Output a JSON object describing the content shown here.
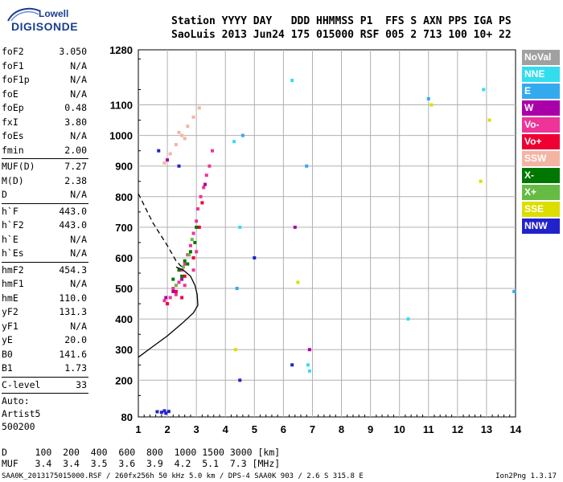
{
  "logo": {
    "line1": "Lowell",
    "line2": "DIGISONDE"
  },
  "header": {
    "line1": "Station YYYY DAY   DDD HHMMSS P1  FFS S AXN PPS IGA PS",
    "line2": "SaoLuis 2013 Jun24 175 015000 RSF 005 2 713 100 10+ 22"
  },
  "params": [
    {
      "label": "foF2",
      "value": "3.050"
    },
    {
      "label": "foF1",
      "value": "N/A"
    },
    {
      "label": "foF1p",
      "value": "N/A"
    },
    {
      "label": "foE",
      "value": "N/A"
    },
    {
      "label": "foEp",
      "value": "0.48"
    },
    {
      "label": "fxI",
      "value": "3.80"
    },
    {
      "label": "foEs",
      "value": "N/A"
    },
    {
      "label": "fmin",
      "value": "2.00"
    },
    {
      "sep": true
    },
    {
      "label": "MUF(D)",
      "value": "7.27"
    },
    {
      "label": "M(D)",
      "value": "2.38"
    },
    {
      "label": "D",
      "value": "N/A"
    },
    {
      "sep": true
    },
    {
      "label": "h`F",
      "value": "443.0"
    },
    {
      "label": "h`F2",
      "value": "443.0"
    },
    {
      "label": "h`E",
      "value": "N/A"
    },
    {
      "label": "h`Es",
      "value": "N/A"
    },
    {
      "sep": true
    },
    {
      "label": "hmF2",
      "value": "454.3"
    },
    {
      "label": "hmF1",
      "value": "N/A"
    },
    {
      "label": "hmE",
      "value": "110.0"
    },
    {
      "label": "yF2",
      "value": "131.3"
    },
    {
      "label": "yF1",
      "value": "N/A"
    },
    {
      "label": "yE",
      "value": "20.0"
    },
    {
      "label": "B0",
      "value": "141.6"
    },
    {
      "label": "B1",
      "value": "1.73"
    },
    {
      "sep": true
    },
    {
      "label": "C-level",
      "value": "33"
    },
    {
      "sep": true
    }
  ],
  "auto": {
    "line1": "Auto:",
    "line2": "Artist5",
    "line3": "500200"
  },
  "legend": [
    {
      "label": "NoVal",
      "color": "#a0a0a0"
    },
    {
      "label": "NNE",
      "color": "#33ddee"
    },
    {
      "label": "E",
      "color": "#33aaee"
    },
    {
      "label": "W",
      "color": "#aa00aa"
    },
    {
      "label": "Vo-",
      "color": "#ee3399"
    },
    {
      "label": "Vo+",
      "color": "#ee0033"
    },
    {
      "label": "SSW",
      "color": "#f4b4a4"
    },
    {
      "label": "X-",
      "color": "#007700"
    },
    {
      "label": "X+",
      "color": "#66bb44"
    },
    {
      "label": "SSE",
      "color": "#dddd00"
    },
    {
      "label": "NNW",
      "color": "#2222cc"
    }
  ],
  "bottom": {
    "line1": "D     100  200  400  600  800  1000 1500 3000 [km]",
    "line2": "MUF   3.4  3.4  3.5  3.6  3.9  4.2  5.1  7.3 [MHz]"
  },
  "footer": {
    "left": "SAA0K_2013175015000.RSF / 260fx256h 50 kHz 5.0 km / DPS-4 SAA0K 903 / 2.6 S 315.8 E",
    "right": "Ion2Png 1.3.17"
  },
  "chart_data": {
    "type": "scatter",
    "title": "",
    "xlabel": "",
    "ylabel": "",
    "xlim": [
      1,
      14
    ],
    "ylim": [
      80,
      1280
    ],
    "x_ticks": [
      1,
      2,
      3,
      4,
      5,
      6,
      7,
      8,
      9,
      10,
      11,
      12,
      13,
      14
    ],
    "y_ticks": [
      80,
      200,
      300,
      400,
      500,
      600,
      700,
      800,
      900,
      1000,
      1100,
      1280
    ],
    "grid": true,
    "series": [
      {
        "name": "Vo-",
        "color": "#ee3399",
        "points": [
          [
            1.9,
            460
          ],
          [
            2.1,
            470
          ],
          [
            2.2,
            500
          ],
          [
            2.4,
            520
          ],
          [
            2.5,
            560
          ],
          [
            2.6,
            580
          ],
          [
            2.7,
            610
          ],
          [
            2.8,
            640
          ],
          [
            2.9,
            680
          ],
          [
            3.0,
            720
          ],
          [
            3.05,
            760
          ],
          [
            3.15,
            800
          ],
          [
            3.25,
            830
          ],
          [
            3.35,
            870
          ],
          [
            3.45,
            900
          ],
          [
            3.55,
            950
          ],
          [
            2.3,
            480
          ],
          [
            2.6,
            510
          ],
          [
            2.9,
            560
          ],
          [
            3.0,
            620
          ]
        ]
      },
      {
        "name": "Vo+",
        "color": "#ee0033",
        "points": [
          [
            2.0,
            450
          ],
          [
            2.3,
            490
          ],
          [
            2.6,
            540
          ],
          [
            2.9,
            600
          ],
          [
            3.1,
            700
          ],
          [
            3.2,
            780
          ],
          [
            2.5,
            470
          ]
        ]
      },
      {
        "name": "X-",
        "color": "#007700",
        "points": [
          [
            2.2,
            530
          ],
          [
            2.4,
            560
          ],
          [
            2.6,
            590
          ],
          [
            2.8,
            620
          ],
          [
            2.95,
            650
          ],
          [
            3.0,
            700
          ],
          [
            2.5,
            540
          ],
          [
            2.7,
            580
          ]
        ]
      },
      {
        "name": "X+",
        "color": "#66bb44",
        "points": [
          [
            2.3,
            510
          ],
          [
            2.55,
            570
          ],
          [
            2.75,
            610
          ],
          [
            2.85,
            660
          ]
        ]
      },
      {
        "name": "SSW",
        "color": "#f4b4a4",
        "points": [
          [
            1.9,
            910
          ],
          [
            2.1,
            940
          ],
          [
            2.3,
            970
          ],
          [
            2.5,
            1000
          ],
          [
            2.7,
            1030
          ],
          [
            2.9,
            1060
          ],
          [
            3.1,
            1090
          ],
          [
            2.4,
            1010
          ],
          [
            2.6,
            990
          ]
        ]
      },
      {
        "name": "W",
        "color": "#aa00aa",
        "points": [
          [
            1.95,
            470
          ],
          [
            2.2,
            490
          ],
          [
            2.5,
            530
          ],
          [
            3.3,
            840
          ],
          [
            2.0,
            920
          ],
          [
            6.4,
            700
          ],
          [
            6.9,
            300
          ]
        ]
      },
      {
        "name": "NNW",
        "color": "#2222cc",
        "points": [
          [
            1.8,
            95
          ],
          [
            1.9,
            100
          ],
          [
            1.95,
            92
          ],
          [
            1.65,
            97
          ],
          [
            2.05,
            98
          ],
          [
            4.5,
            200
          ],
          [
            5.0,
            600
          ],
          [
            6.3,
            250
          ],
          [
            1.7,
            950
          ],
          [
            2.4,
            900
          ]
        ]
      },
      {
        "name": "NNE",
        "color": "#33ddee",
        "points": [
          [
            4.5,
            700
          ],
          [
            6.3,
            1180
          ],
          [
            6.9,
            230
          ],
          [
            6.85,
            250
          ],
          [
            4.3,
            980
          ],
          [
            10.3,
            400
          ],
          [
            12.9,
            1150
          ]
        ]
      },
      {
        "name": "E",
        "color": "#33aaee",
        "points": [
          [
            4.4,
            500
          ],
          [
            6.8,
            900
          ],
          [
            11.0,
            1120
          ],
          [
            13.95,
            490
          ],
          [
            4.6,
            1000
          ]
        ]
      },
      {
        "name": "SSE",
        "color": "#dddd00",
        "points": [
          [
            4.35,
            300
          ],
          [
            6.5,
            520
          ],
          [
            12.8,
            850
          ],
          [
            11.1,
            1100
          ],
          [
            13.1,
            1050
          ]
        ]
      }
    ],
    "profile_solid": [
      [
        1.0,
        275
      ],
      [
        1.5,
        310
      ],
      [
        2.0,
        345
      ],
      [
        2.5,
        385
      ],
      [
        2.9,
        420
      ],
      [
        3.05,
        445
      ],
      [
        3.03,
        480
      ],
      [
        2.95,
        510
      ],
      [
        2.8,
        540
      ],
      [
        2.55,
        560
      ],
      [
        2.3,
        570
      ]
    ],
    "profile_dashed": [
      [
        1.0,
        810
      ],
      [
        1.5,
        715
      ],
      [
        2.0,
        640
      ],
      [
        2.3,
        590
      ],
      [
        2.55,
        565
      ]
    ]
  }
}
